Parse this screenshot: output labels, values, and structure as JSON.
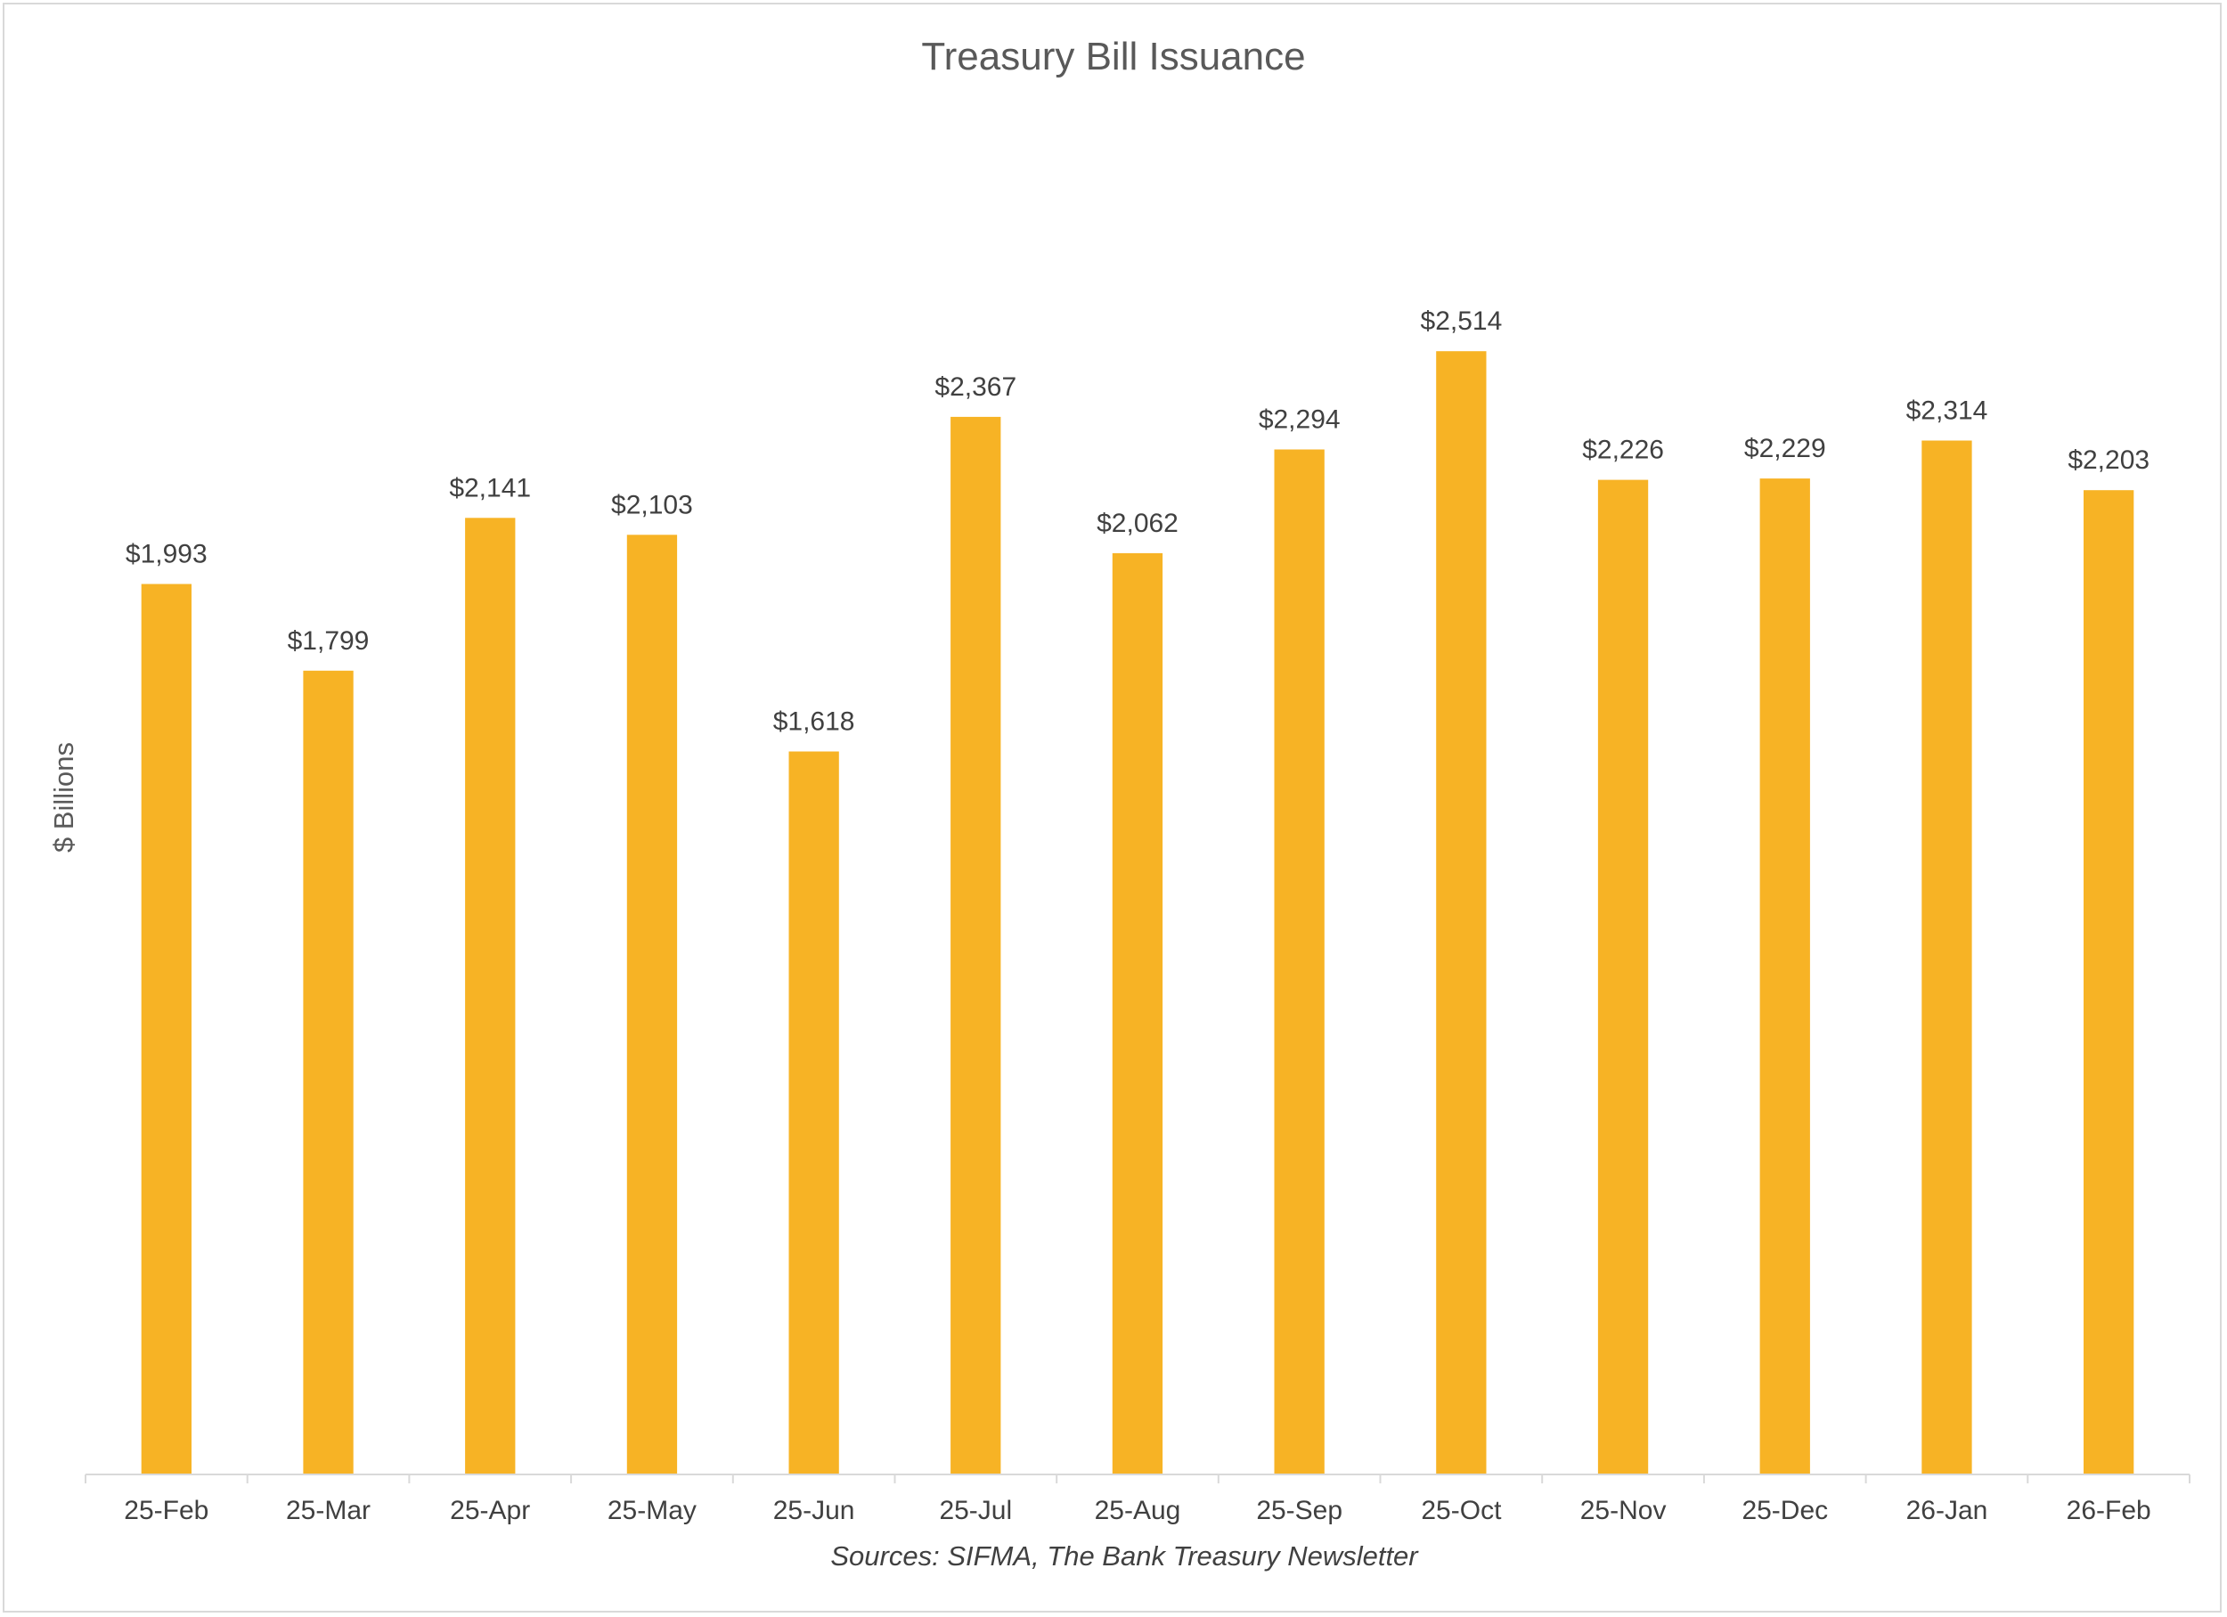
{
  "chart_data": {
    "type": "bar",
    "title": "Treasury Bill Issuance",
    "ylabel": "$ Billions",
    "xlabel": "",
    "categories": [
      "25-Feb",
      "25-Mar",
      "25-Apr",
      "25-May",
      "25-Jun",
      "25-Jul",
      "25-Aug",
      "25-Sep",
      "25-Oct",
      "25-Nov",
      "25-Dec",
      "26-Jan",
      "26-Feb"
    ],
    "values": [
      1993,
      1799,
      2141,
      2103,
      1618,
      2367,
      2062,
      2294,
      2514,
      2226,
      2229,
      2314,
      2203
    ],
    "data_labels": [
      "$1,993",
      "$1,799",
      "$2,141",
      "$2,103",
      "$1,618",
      "$2,367",
      "$2,062",
      "$2,294",
      "$2,514",
      "$2,226",
      "$2,229",
      "$2,314",
      "$2,203"
    ],
    "ylim": [
      0,
      3300
    ],
    "grid": false,
    "legend": "none",
    "bar_color": "#F7B325",
    "source": "Sources: SIFMA, The Bank Treasury Newsletter"
  }
}
